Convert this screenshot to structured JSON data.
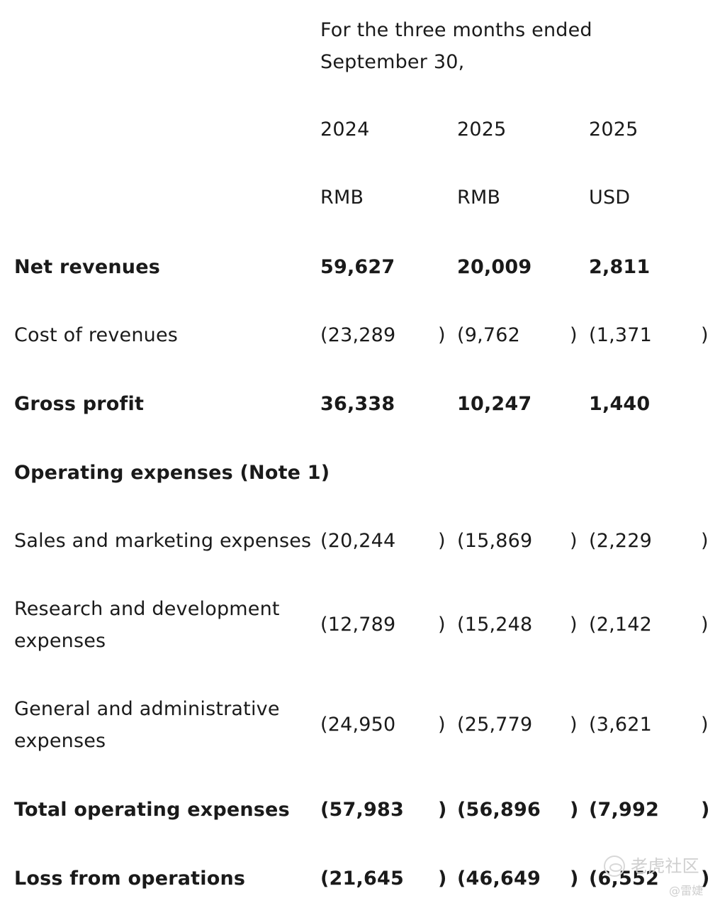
{
  "header": {
    "period_line1": "For the three months ended",
    "period_line2": "September 30,",
    "years": [
      "2024",
      "2025",
      "2025"
    ],
    "currencies": [
      "RMB",
      "RMB",
      "USD"
    ]
  },
  "rows": [
    {
      "label": "Net revenues",
      "bold": true,
      "values": [
        "59,627",
        "20,009",
        "2,811"
      ],
      "negative": false
    },
    {
      "label": "Cost of revenues",
      "bold": false,
      "values": [
        "(23,289",
        "(9,762",
        "(1,371"
      ],
      "negative": true
    },
    {
      "label": "Gross profit",
      "bold": true,
      "values": [
        "36,338",
        "10,247",
        "1,440"
      ],
      "negative": false
    },
    {
      "label": "Operating expenses (Note 1)",
      "bold": true,
      "values": [],
      "negative": false
    },
    {
      "label": "Sales and marketing expenses",
      "bold": false,
      "values": [
        "(20,244",
        "(15,869",
        "(2,229"
      ],
      "negative": true
    },
    {
      "label_line1": "Research and development",
      "label_line2": "expenses",
      "bold": false,
      "values": [
        "(12,789",
        "(15,248",
        "(2,142"
      ],
      "negative": true
    },
    {
      "label_line1": "General and administrative",
      "label_line2": "expenses",
      "bold": false,
      "values": [
        "(24,950",
        "(25,779",
        "(3,621"
      ],
      "negative": true
    },
    {
      "label": "Total operating expenses",
      "bold": true,
      "values": [
        "(57,983",
        "(56,896",
        "(7,992"
      ],
      "negative": true
    },
    {
      "label": "Loss from operations",
      "bold": true,
      "values": [
        "(21,645",
        "(46,649",
        "(6,552"
      ],
      "negative": true
    }
  ],
  "paren_close": ")",
  "watermark": {
    "brand": "老虎社区",
    "handle": "@雷婕"
  }
}
